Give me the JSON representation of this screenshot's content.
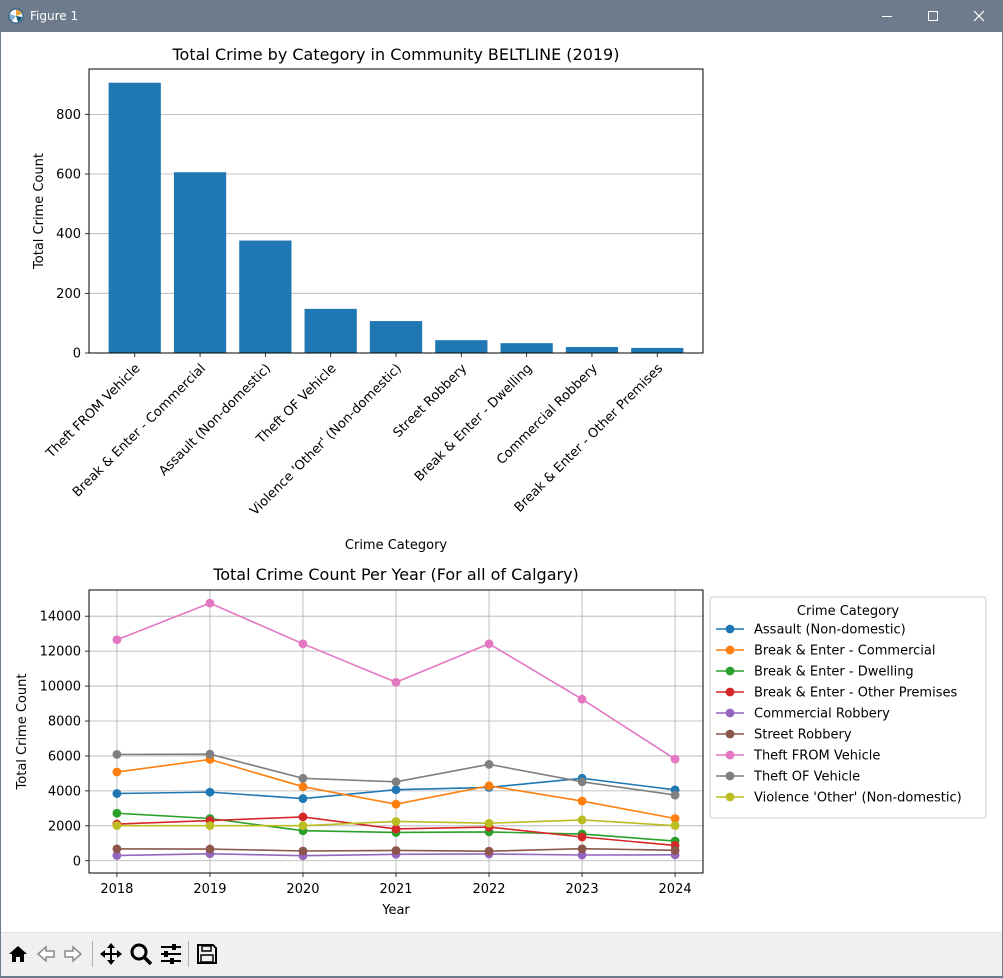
{
  "window": {
    "title": "Figure 1",
    "minimize_icon": "minimize-icon",
    "maximize_icon": "maximize-icon",
    "close_icon": "close-icon"
  },
  "toolbar": {
    "buttons": [
      {
        "name": "home-button",
        "icon": "home-icon"
      },
      {
        "name": "back-button",
        "icon": "back-arrow-icon"
      },
      {
        "name": "forward-button",
        "icon": "forward-arrow-icon"
      },
      {
        "name": "pan-button",
        "icon": "move-icon"
      },
      {
        "name": "zoom-button",
        "icon": "zoom-icon"
      },
      {
        "name": "configure-subplots-button",
        "icon": "sliders-icon"
      },
      {
        "name": "save-button",
        "icon": "save-icon"
      }
    ]
  },
  "colors": {
    "bar": "#1f77b4",
    "grid": "#b0b0b0",
    "palette": [
      "#1f77b4",
      "#ff7f0e",
      "#2ca02c",
      "#d62728",
      "#9467bd",
      "#8c564b",
      "#e377c2",
      "#7f7f7f",
      "#bcbd22"
    ]
  },
  "chart_data": [
    {
      "type": "bar",
      "title": "Total Crime by Category in Community BELTLINE (2019)",
      "xlabel": "Crime Category",
      "ylabel": "Total Crime Count",
      "categories": [
        "Theft FROM Vehicle",
        "Break & Enter - Commercial",
        "Assault (Non-domestic)",
        "Theft OF Vehicle",
        "Violence  'Other' (Non-domestic)",
        "Street Robbery",
        "Break & Enter - Dwelling",
        "Commercial Robbery",
        "Break & Enter - Other Premises"
      ],
      "values": [
        906,
        606,
        377,
        148,
        107,
        43,
        33,
        20,
        17
      ],
      "yticks": [
        0,
        200,
        400,
        600,
        800
      ],
      "ylim": [
        0,
        952
      ],
      "grid": "y",
      "legend": "none"
    },
    {
      "type": "line",
      "title": "Total Crime Count Per Year (For all of Calgary)",
      "xlabel": "Year",
      "ylabel": "Total Crime Count",
      "x": [
        2018,
        2019,
        2020,
        2021,
        2022,
        2023,
        2024
      ],
      "xlim": [
        2017.7,
        2024.3
      ],
      "ylim": [
        -700,
        15500
      ],
      "yticks": [
        0,
        2000,
        4000,
        6000,
        8000,
        10000,
        12000,
        14000
      ],
      "grid": "both",
      "legend_title": "Crime Category",
      "legend_position": "outside right",
      "series": [
        {
          "name": "Assault (Non-domestic)",
          "values": [
            3850,
            3930,
            3560,
            4070,
            4200,
            4720,
            4060
          ]
        },
        {
          "name": "Break & Enter - Commercial",
          "values": [
            5080,
            5800,
            4240,
            3240,
            4290,
            3420,
            2420
          ]
        },
        {
          "name": "Break & Enter - Dwelling",
          "values": [
            2720,
            2420,
            1720,
            1620,
            1650,
            1530,
            1130
          ]
        },
        {
          "name": "Break & Enter - Other Premises",
          "values": [
            2100,
            2300,
            2510,
            1820,
            1930,
            1360,
            880
          ]
        },
        {
          "name": "Commercial Robbery",
          "values": [
            300,
            400,
            290,
            370,
            390,
            330,
            340
          ]
        },
        {
          "name": "Street Robbery",
          "values": [
            680,
            670,
            560,
            590,
            550,
            690,
            600
          ]
        },
        {
          "name": "Theft FROM Vehicle",
          "values": [
            12650,
            14750,
            12420,
            10220,
            12420,
            9250,
            5820
          ]
        },
        {
          "name": "Theft OF Vehicle",
          "values": [
            6090,
            6100,
            4720,
            4520,
            5520,
            4520,
            3760
          ]
        },
        {
          "name": "Violence  'Other' (Non-domestic)",
          "values": [
            2010,
            2010,
            2010,
            2250,
            2150,
            2340,
            2010
          ]
        }
      ]
    }
  ]
}
